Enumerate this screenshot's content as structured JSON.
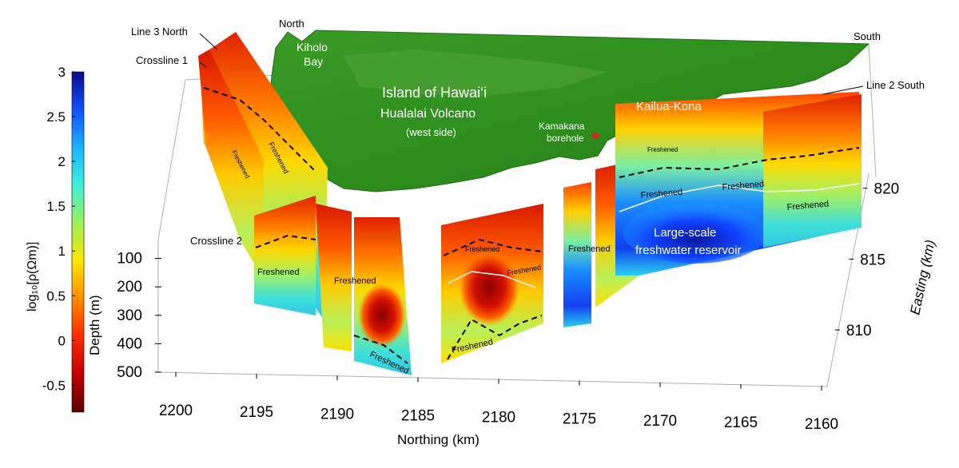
{
  "chart_data": {
    "type": "3d-resistivity-sections",
    "title": "Island of Hawai‘i",
    "subtitle": "Hualalai Volcano",
    "subtitle_note": "(west side)",
    "xlabel": "Northing (km)",
    "ylabel_right": "Easting (km)",
    "zlabel": "Depth (m)",
    "colorbar_label": "log₁₀[ρ(Ωm)]",
    "colorbar": {
      "range": [
        -0.8,
        3
      ],
      "ticks": [
        -0.5,
        0,
        0.5,
        1,
        1.5,
        2,
        2.5,
        3
      ],
      "tick_labels": [
        "-0.5",
        "0",
        "0.5",
        "1",
        "1.5",
        "2",
        "2.5",
        "3"
      ],
      "colormap": [
        "#5a0000",
        "#c00000",
        "#ff2a00",
        "#ff8c00",
        "#ffe600",
        "#9cf05a",
        "#3ff0d8",
        "#1ab4ff",
        "#1050ff",
        "#0a0a8c"
      ]
    },
    "x_axis": {
      "range": [
        2200,
        2160
      ],
      "ticks": [
        2200,
        2195,
        2190,
        2185,
        2180,
        2175,
        2170,
        2165,
        2160
      ],
      "tick_labels": [
        "2200",
        "2195",
        "2190",
        "2185",
        "2180",
        "2175",
        "2170",
        "2165",
        "2160"
      ]
    },
    "y_axis": {
      "range": [
        806,
        821
      ],
      "ticks": [
        810,
        815,
        820
      ],
      "tick_labels": [
        "810",
        "815",
        "820"
      ]
    },
    "z_axis": {
      "range": [
        0,
        500
      ],
      "ticks": [
        100,
        200,
        300,
        400,
        500
      ],
      "tick_labels": [
        "100",
        "200",
        "300",
        "400",
        "500"
      ]
    },
    "labels": {
      "north": "North",
      "south": "South",
      "kiholo_1": "Kiholo",
      "kiholo_2": "Bay",
      "kailua": "Kailua-Kona",
      "kamakana_1": "Kamakana",
      "kamakana_2": "borehole",
      "line3_north": "Line 3 North",
      "crossline1": "Crossline 1",
      "crossline2": "Crossline 2",
      "line2_south": "Line 2 South",
      "reservoir_1": "Large-scale",
      "reservoir_2": "freshwater reservoir",
      "freshened": "Freshened"
    },
    "colors": {
      "land": "#2f8f1e",
      "land_dark": "#1f6e12",
      "borehole": "#e02020",
      "freshened_contour": "#000000",
      "fresh_contour": "#ffffff"
    }
  }
}
